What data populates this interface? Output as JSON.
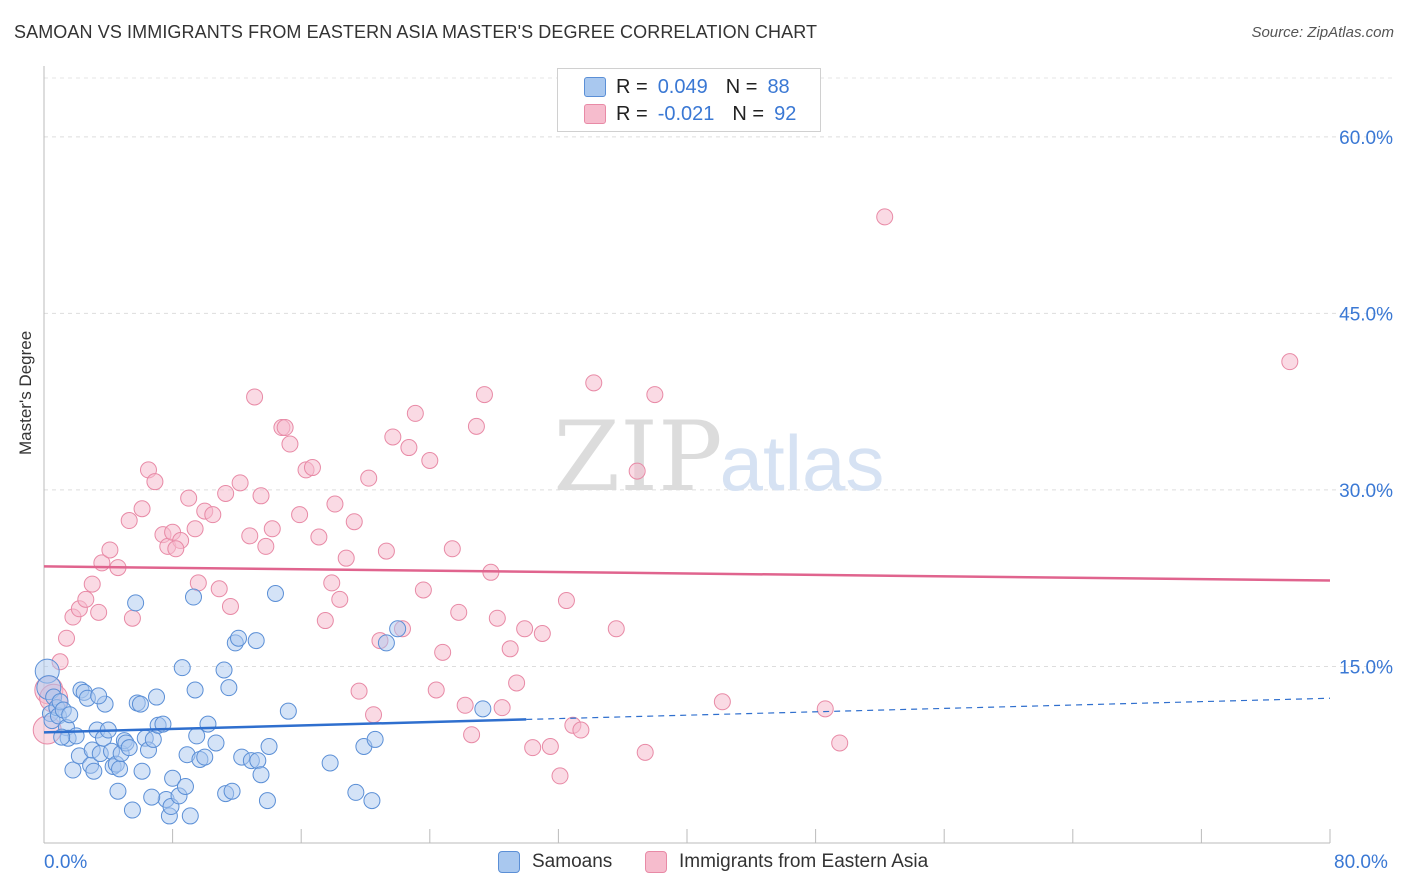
{
  "title": "SAMOAN VS IMMIGRANTS FROM EASTERN ASIA MASTER'S DEGREE CORRELATION CHART",
  "source": "Source: ZipAtlas.com",
  "legend": {
    "rows": [
      {
        "r_label": "R =",
        "r_value": "0.049",
        "n_label": "N =",
        "n_value": "88"
      },
      {
        "r_label": "R =",
        "r_value": "-0.021",
        "n_label": "N =",
        "n_value": "92"
      }
    ]
  },
  "bottom_legend": [
    "Samoans",
    "Immigrants from Eastern Asia"
  ],
  "colors": {
    "blue_fill": "#a9c8ef",
    "blue_stroke": "#5b8fd6",
    "blue_line": "#2f6fce",
    "pink_fill": "#f6bccd",
    "pink_stroke": "#e88aa6",
    "pink_line": "#e0648e",
    "axis_text": "#3a78d4"
  },
  "watermark": {
    "zip": "ZIP",
    "atlas": "atlas"
  },
  "chart_data": {
    "type": "scatter",
    "title": "SAMOAN VS IMMIGRANTS FROM EASTERN ASIA MASTER'S DEGREE CORRELATION CHART",
    "xlabel": "",
    "ylabel": "Master's Degree",
    "xlim": [
      0,
      80
    ],
    "ylim": [
      0,
      65
    ],
    "x_tick_labels": [
      "0.0%",
      "80.0%"
    ],
    "y_ticks": [
      15,
      30,
      45,
      60
    ],
    "y_tick_labels": [
      "15.0%",
      "30.0%",
      "45.0%",
      "60.0%"
    ],
    "grid": true,
    "legend_position": "top-center",
    "series": [
      {
        "name": "Samoans",
        "r": 0.049,
        "n": 88,
        "trend": {
          "x0": 0,
          "y0": 9.4,
          "x1": 30,
          "y1": 10.5,
          "dashed_to_x": 80,
          "dashed_to_y": 12.3
        },
        "points": [
          [
            0.2,
            14.6
          ],
          [
            0.3,
            13.2
          ],
          [
            0.4,
            11.0
          ],
          [
            0.5,
            10.4
          ],
          [
            0.6,
            12.4
          ],
          [
            0.8,
            11.5
          ],
          [
            0.9,
            10.8
          ],
          [
            1.0,
            12.0
          ],
          [
            1.2,
            11.3
          ],
          [
            1.4,
            9.8
          ],
          [
            1.5,
            8.9
          ],
          [
            1.6,
            10.9
          ],
          [
            1.8,
            6.2
          ],
          [
            2.0,
            9.1
          ],
          [
            2.2,
            7.4
          ],
          [
            2.3,
            13.0
          ],
          [
            2.5,
            12.8
          ],
          [
            2.7,
            12.3
          ],
          [
            2.9,
            6.6
          ],
          [
            3.0,
            7.9
          ],
          [
            3.1,
            6.1
          ],
          [
            3.3,
            9.6
          ],
          [
            3.5,
            7.6
          ],
          [
            3.7,
            8.9
          ],
          [
            3.8,
            11.8
          ],
          [
            4.0,
            9.6
          ],
          [
            4.2,
            7.8
          ],
          [
            4.3,
            6.5
          ],
          [
            4.5,
            6.7
          ],
          [
            4.6,
            4.4
          ],
          [
            4.7,
            6.3
          ],
          [
            4.8,
            7.6
          ],
          [
            5.0,
            8.7
          ],
          [
            5.1,
            8.5
          ],
          [
            5.3,
            8.1
          ],
          [
            5.5,
            2.8
          ],
          [
            5.7,
            20.4
          ],
          [
            5.8,
            11.9
          ],
          [
            6.0,
            11.8
          ],
          [
            6.1,
            6.1
          ],
          [
            6.3,
            8.9
          ],
          [
            6.5,
            7.9
          ],
          [
            6.8,
            8.8
          ],
          [
            7.0,
            12.4
          ],
          [
            7.1,
            10.0
          ],
          [
            7.4,
            10.1
          ],
          [
            7.6,
            3.7
          ],
          [
            7.8,
            2.3
          ],
          [
            7.9,
            3.1
          ],
          [
            8.0,
            5.5
          ],
          [
            8.4,
            4.0
          ],
          [
            8.6,
            14.9
          ],
          [
            8.8,
            4.8
          ],
          [
            8.9,
            7.5
          ],
          [
            9.1,
            2.3
          ],
          [
            9.3,
            20.9
          ],
          [
            9.4,
            13.0
          ],
          [
            9.7,
            7.1
          ],
          [
            10.0,
            7.3
          ],
          [
            10.2,
            10.1
          ],
          [
            10.7,
            8.5
          ],
          [
            11.2,
            14.7
          ],
          [
            11.3,
            4.2
          ],
          [
            11.5,
            13.2
          ],
          [
            11.7,
            4.4
          ],
          [
            11.9,
            17.0
          ],
          [
            12.1,
            17.4
          ],
          [
            12.3,
            7.3
          ],
          [
            12.9,
            7.0
          ],
          [
            13.2,
            17.2
          ],
          [
            13.3,
            7.0
          ],
          [
            13.5,
            5.8
          ],
          [
            13.9,
            3.6
          ],
          [
            14.0,
            8.2
          ],
          [
            14.4,
            21.2
          ],
          [
            15.2,
            11.2
          ],
          [
            17.8,
            6.8
          ],
          [
            19.4,
            4.3
          ],
          [
            19.9,
            8.2
          ],
          [
            20.4,
            3.6
          ],
          [
            20.6,
            8.8
          ],
          [
            21.3,
            17.0
          ],
          [
            22.0,
            18.2
          ],
          [
            27.3,
            11.4
          ],
          [
            9.5,
            9.1
          ],
          [
            3.4,
            12.5
          ],
          [
            6.7,
            3.9
          ],
          [
            1.1,
            9.0
          ]
        ]
      },
      {
        "name": "Immigrants from Eastern Asia",
        "r": -0.021,
        "n": 92,
        "trend": {
          "x0": 0,
          "y0": 23.5,
          "x1": 80,
          "y1": 22.3
        },
        "points": [
          [
            0.2,
            9.6
          ],
          [
            0.3,
            13.0
          ],
          [
            0.6,
            12.3
          ],
          [
            1.0,
            15.4
          ],
          [
            1.4,
            17.4
          ],
          [
            1.8,
            19.2
          ],
          [
            2.2,
            19.9
          ],
          [
            2.6,
            20.7
          ],
          [
            3.0,
            22.0
          ],
          [
            3.4,
            19.6
          ],
          [
            3.6,
            23.8
          ],
          [
            4.1,
            24.9
          ],
          [
            4.6,
            23.4
          ],
          [
            5.3,
            27.4
          ],
          [
            5.5,
            19.1
          ],
          [
            6.1,
            28.4
          ],
          [
            6.5,
            31.7
          ],
          [
            6.9,
            30.7
          ],
          [
            7.4,
            26.2
          ],
          [
            7.7,
            25.2
          ],
          [
            8.0,
            26.4
          ],
          [
            8.5,
            25.7
          ],
          [
            9.0,
            29.3
          ],
          [
            9.4,
            26.7
          ],
          [
            9.6,
            22.1
          ],
          [
            10.0,
            28.2
          ],
          [
            10.5,
            27.9
          ],
          [
            10.9,
            21.6
          ],
          [
            11.3,
            29.7
          ],
          [
            11.6,
            20.1
          ],
          [
            12.2,
            30.6
          ],
          [
            12.8,
            26.1
          ],
          [
            13.1,
            37.9
          ],
          [
            13.5,
            29.5
          ],
          [
            13.8,
            25.2
          ],
          [
            14.2,
            26.7
          ],
          [
            14.8,
            35.3
          ],
          [
            15.3,
            33.9
          ],
          [
            15.9,
            27.9
          ],
          [
            16.3,
            31.7
          ],
          [
            16.7,
            31.9
          ],
          [
            17.1,
            26.0
          ],
          [
            17.5,
            18.9
          ],
          [
            17.9,
            22.1
          ],
          [
            18.4,
            20.7
          ],
          [
            18.8,
            24.2
          ],
          [
            19.3,
            27.3
          ],
          [
            19.6,
            12.9
          ],
          [
            20.2,
            31.0
          ],
          [
            20.5,
            10.9
          ],
          [
            20.9,
            17.2
          ],
          [
            21.3,
            24.8
          ],
          [
            21.7,
            34.5
          ],
          [
            22.3,
            18.2
          ],
          [
            22.7,
            33.6
          ],
          [
            23.1,
            36.5
          ],
          [
            23.6,
            21.5
          ],
          [
            24.0,
            32.5
          ],
          [
            24.4,
            13.0
          ],
          [
            24.8,
            16.2
          ],
          [
            25.4,
            25.0
          ],
          [
            25.8,
            19.6
          ],
          [
            26.2,
            11.7
          ],
          [
            26.6,
            9.2
          ],
          [
            26.9,
            35.4
          ],
          [
            27.4,
            38.1
          ],
          [
            27.8,
            23.0
          ],
          [
            28.2,
            19.1
          ],
          [
            28.5,
            11.5
          ],
          [
            29.0,
            16.5
          ],
          [
            29.4,
            13.6
          ],
          [
            29.9,
            18.2
          ],
          [
            30.4,
            8.1
          ],
          [
            31.0,
            17.8
          ],
          [
            31.5,
            8.2
          ],
          [
            32.1,
            5.7
          ],
          [
            32.5,
            20.6
          ],
          [
            32.9,
            10.0
          ],
          [
            33.4,
            9.6
          ],
          [
            34.2,
            39.1
          ],
          [
            35.6,
            18.2
          ],
          [
            36.9,
            31.6
          ],
          [
            37.4,
            7.7
          ],
          [
            38.0,
            38.1
          ],
          [
            42.2,
            12.0
          ],
          [
            48.6,
            11.4
          ],
          [
            49.5,
            8.5
          ],
          [
            52.3,
            53.2
          ],
          [
            77.5,
            40.9
          ],
          [
            18.1,
            28.8
          ],
          [
            15.0,
            35.3
          ],
          [
            8.2,
            25.0
          ]
        ]
      }
    ]
  }
}
